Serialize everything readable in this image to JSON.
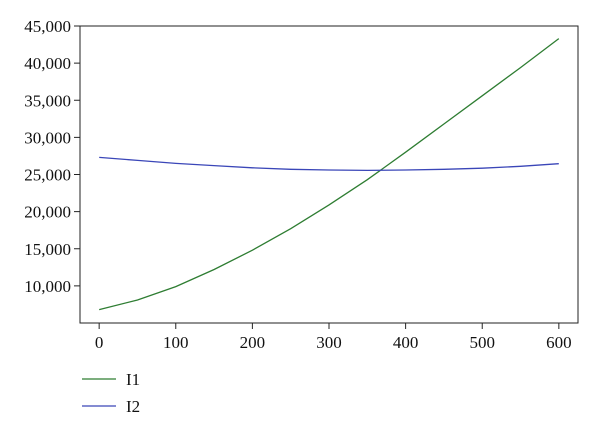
{
  "chart_data": {
    "type": "line",
    "title": "",
    "xlabel": "",
    "ylabel": "",
    "xlim": [
      -25,
      625
    ],
    "ylim": [
      5000,
      45000
    ],
    "x_ticks": [
      0,
      100,
      200,
      300,
      400,
      500,
      600
    ],
    "x_tick_labels": [
      "0",
      "100",
      "200",
      "300",
      "400",
      "500",
      "600"
    ],
    "y_ticks": [
      10000,
      15000,
      20000,
      25000,
      30000,
      35000,
      40000,
      45000
    ],
    "y_tick_labels": [
      "10,000",
      "15,000",
      "20,000",
      "25,000",
      "30,000",
      "35,000",
      "40,000",
      "45,000"
    ],
    "grid": false,
    "legend_position": "bottom-left",
    "x": [
      0,
      50,
      100,
      150,
      200,
      250,
      300,
      350,
      400,
      450,
      500,
      550,
      600
    ],
    "series": [
      {
        "name": "I1",
        "color": "#2e7d32",
        "values": [
          6800,
          8100,
          9900,
          12200,
          14800,
          17700,
          20900,
          24300,
          28000,
          31800,
          35600,
          39400,
          43300
        ]
      },
      {
        "name": "I2",
        "color": "#3a46b8",
        "values": [
          27300,
          26900,
          26500,
          26200,
          25900,
          25700,
          25600,
          25550,
          25600,
          25700,
          25850,
          26100,
          26450
        ]
      }
    ]
  }
}
